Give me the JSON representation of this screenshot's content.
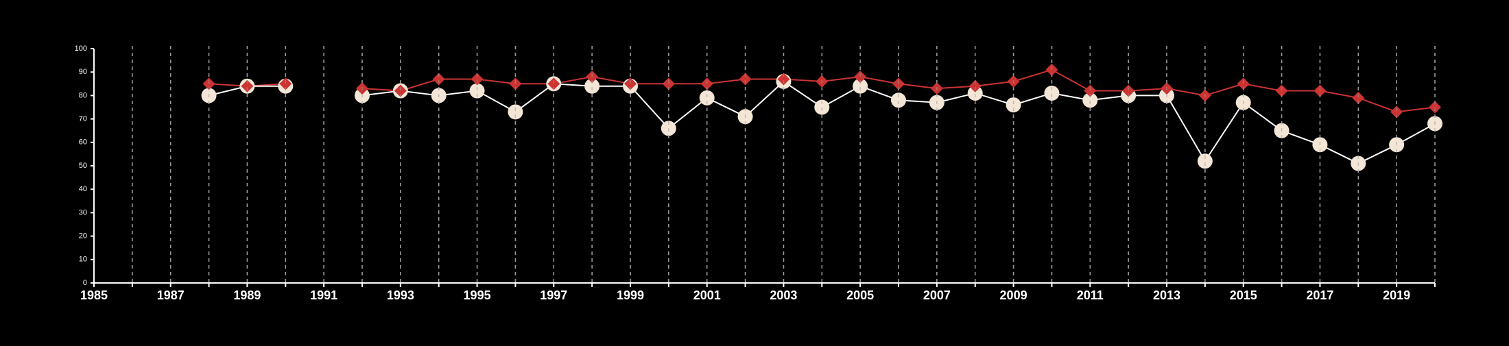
{
  "chart_data": {
    "type": "line",
    "title": "",
    "xlabel": "",
    "ylabel": "",
    "xlim": [
      1985,
      2020
    ],
    "ylim": [
      0,
      100
    ],
    "grid": "vertical dashed lines at every year",
    "x_tick_labels": [
      "1985",
      "1987",
      "1989",
      "1991",
      "1993",
      "1995",
      "1997",
      "1999",
      "2001",
      "2003",
      "2005",
      "2007",
      "2009",
      "2011",
      "2013",
      "2015",
      "2017",
      "2019"
    ],
    "y_tick_labels": [
      "0",
      "10",
      "20",
      "30",
      "40",
      "50",
      "60",
      "70",
      "80",
      "90",
      "100"
    ],
    "colors": {
      "background": "#000000",
      "series_red": "#cc3333",
      "series_cream": "#f3e6d6",
      "series_cream_line": "#ffffff"
    },
    "series": [
      {
        "marker": "diamond",
        "color": "#cc3333",
        "points": [
          {
            "x": 1988,
            "y": 85
          },
          {
            "x": 1989,
            "y": 84
          },
          {
            "x": 1990,
            "y": 85
          },
          {
            "x": 1992,
            "y": 83
          },
          {
            "x": 1993,
            "y": 82
          },
          {
            "x": 1994,
            "y": 87
          },
          {
            "x": 1995,
            "y": 87
          },
          {
            "x": 1996,
            "y": 85
          },
          {
            "x": 1997,
            "y": 85
          },
          {
            "x": 1998,
            "y": 88
          },
          {
            "x": 1999,
            "y": 85
          },
          {
            "x": 2000,
            "y": 85
          },
          {
            "x": 2001,
            "y": 85
          },
          {
            "x": 2002,
            "y": 87
          },
          {
            "x": 2003,
            "y": 87
          },
          {
            "x": 2004,
            "y": 86
          },
          {
            "x": 2005,
            "y": 88
          },
          {
            "x": 2006,
            "y": 85
          },
          {
            "x": 2007,
            "y": 83
          },
          {
            "x": 2008,
            "y": 84
          },
          {
            "x": 2009,
            "y": 86
          },
          {
            "x": 2010,
            "y": 91
          },
          {
            "x": 2011,
            "y": 82
          },
          {
            "x": 2012,
            "y": 82
          },
          {
            "x": 2013,
            "y": 83
          },
          {
            "x": 2014,
            "y": 80
          },
          {
            "x": 2015,
            "y": 85
          },
          {
            "x": 2016,
            "y": 82
          },
          {
            "x": 2017,
            "y": 82
          },
          {
            "x": 2018,
            "y": 79
          },
          {
            "x": 2019,
            "y": 73
          },
          {
            "x": 2020,
            "y": 75
          }
        ]
      },
      {
        "marker": "circle",
        "color": "#f3e6d6",
        "points": [
          {
            "x": 1988,
            "y": 80
          },
          {
            "x": 1989,
            "y": 84
          },
          {
            "x": 1990,
            "y": 84
          },
          {
            "x": 1992,
            "y": 80
          },
          {
            "x": 1993,
            "y": 82
          },
          {
            "x": 1994,
            "y": 80
          },
          {
            "x": 1995,
            "y": 82
          },
          {
            "x": 1996,
            "y": 73
          },
          {
            "x": 1997,
            "y": 85
          },
          {
            "x": 1998,
            "y": 84
          },
          {
            "x": 1999,
            "y": 84
          },
          {
            "x": 2000,
            "y": 66
          },
          {
            "x": 2001,
            "y": 79
          },
          {
            "x": 2002,
            "y": 71
          },
          {
            "x": 2003,
            "y": 86
          },
          {
            "x": 2004,
            "y": 75
          },
          {
            "x": 2005,
            "y": 84
          },
          {
            "x": 2006,
            "y": 78
          },
          {
            "x": 2007,
            "y": 77
          },
          {
            "x": 2008,
            "y": 81
          },
          {
            "x": 2009,
            "y": 76
          },
          {
            "x": 2010,
            "y": 81
          },
          {
            "x": 2011,
            "y": 78
          },
          {
            "x": 2012,
            "y": 80
          },
          {
            "x": 2013,
            "y": 80
          },
          {
            "x": 2014,
            "y": 52
          },
          {
            "x": 2015,
            "y": 77
          },
          {
            "x": 2016,
            "y": 65
          },
          {
            "x": 2017,
            "y": 59
          },
          {
            "x": 2018,
            "y": 51
          },
          {
            "x": 2019,
            "y": 59
          },
          {
            "x": 2020,
            "y": 68
          }
        ]
      }
    ]
  }
}
